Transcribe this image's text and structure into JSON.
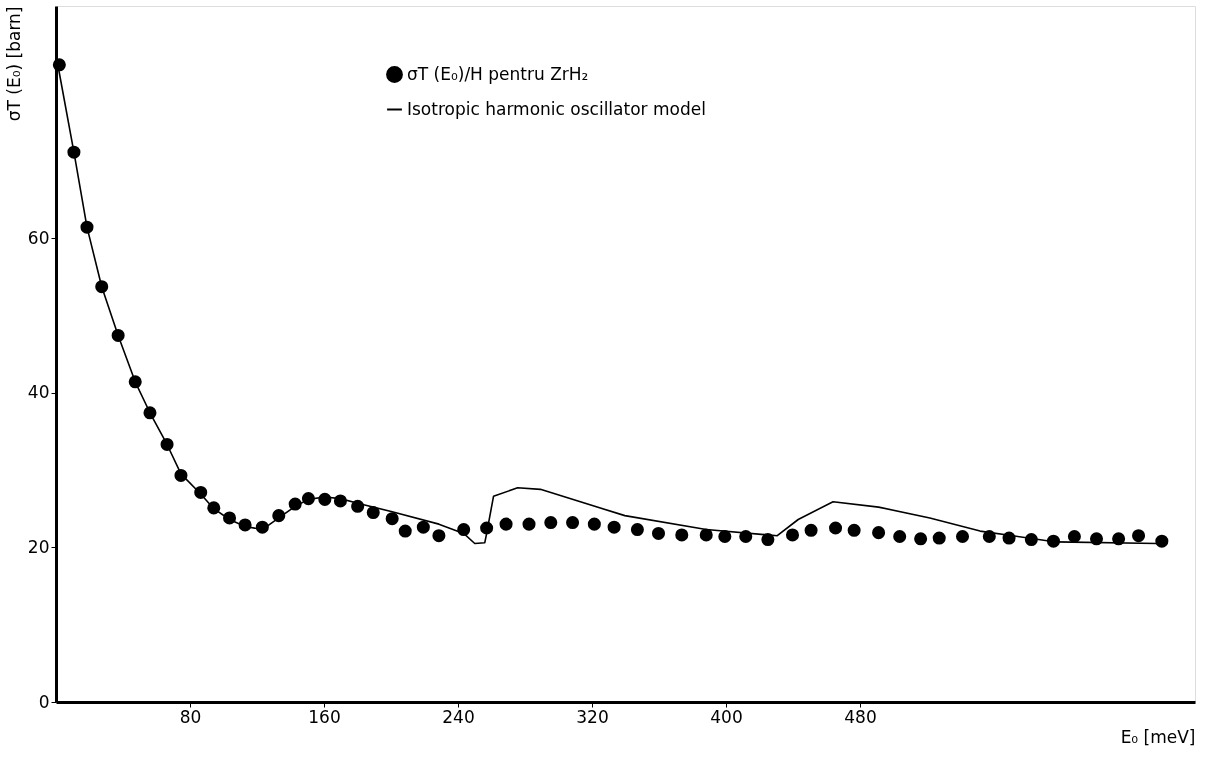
{
  "chart_data": {
    "type": "scatter",
    "xlabel": "E₀ [meV]",
    "ylabel": "σT (E₀) [barn]",
    "xlim": [
      0,
      680
    ],
    "ylim": [
      0,
      90
    ],
    "xticks": [
      80,
      160,
      240,
      320,
      400,
      480
    ],
    "yticks": [
      0,
      20,
      40,
      60
    ],
    "grid": false,
    "legend": "top",
    "line_style": "solid",
    "series": [
      {
        "name": "σT (E₀)/H pentru ZrH₂",
        "marker": "circle",
        "color": "#000000",
        "x": [
          2,
          10.7,
          18.5,
          27.3,
          37.1,
          47.3,
          56.1,
          66.3,
          74.6,
          86.4,
          94.2,
          103.6,
          112.9,
          123.2,
          133,
          142.8,
          150.7,
          160.5,
          169.8,
          180.1,
          189.4,
          200.7,
          208.5,
          219.3,
          228.6,
          243.4,
          257.1,
          268.7,
          282.4,
          295.4,
          308.4,
          321.4,
          333.2,
          347.1,
          359.7,
          373.6,
          388.2,
          399.3,
          411.8,
          425,
          439.7,
          450.8,
          465.4,
          476.5,
          491.1,
          503.7,
          516.2,
          527.3,
          541.2,
          557.2,
          569,
          582.3,
          595.5,
          608,
          621.2,
          634.4,
          646.3,
          660.2
        ],
        "values": [
          82.4,
          71.1,
          61.4,
          53.7,
          47.4,
          41.4,
          37.4,
          33.3,
          29.3,
          27.1,
          25.1,
          23.8,
          22.9,
          22.6,
          24.1,
          25.6,
          26.3,
          26.2,
          26,
          25.3,
          24.5,
          23.7,
          22.1,
          22.6,
          21.5,
          22.3,
          22.5,
          23,
          23,
          23.2,
          23.2,
          23,
          22.6,
          22.3,
          21.8,
          21.6,
          21.6,
          21.4,
          21.4,
          21,
          21.6,
          22.2,
          22.5,
          22.2,
          21.9,
          21.4,
          21.1,
          21.2,
          21.4,
          21.4,
          21.2,
          21,
          20.8,
          21.4,
          21.1,
          21.1,
          21.5,
          20.8
        ]
      },
      {
        "name": "Isotropic harmonic oscillator model",
        "type": "line",
        "marker": "none",
        "color": "#000000",
        "x": [
          1,
          10.7,
          18.5,
          27.3,
          37.1,
          47.3,
          56.1,
          66.3,
          74.6,
          86.4,
          94.2,
          103.6,
          112.9,
          123.2,
          133,
          142.8,
          150.7,
          160.5,
          169.8,
          180.1,
          200.7,
          228.6,
          243.4,
          250,
          256,
          257.1,
          261.2,
          275.6,
          289.2,
          339.6,
          388.2,
          430.6,
          443.1,
          463.9,
          491.1,
          521.7,
          551.7,
          596.9,
          657.4
        ],
        "values": [
          82.5,
          71.1,
          61.4,
          53.7,
          47.4,
          41.4,
          37.4,
          33.3,
          29.5,
          26.9,
          25,
          23.6,
          22.7,
          22.3,
          23.8,
          25.3,
          26.2,
          26.5,
          26.3,
          25.7,
          24.6,
          23,
          21.8,
          20.5,
          20.6,
          21.8,
          26.6,
          27.7,
          27.5,
          24.1,
          22.3,
          21.5,
          23.6,
          25.9,
          25.2,
          23.8,
          22.1,
          20.7,
          20.5
        ]
      }
    ]
  }
}
